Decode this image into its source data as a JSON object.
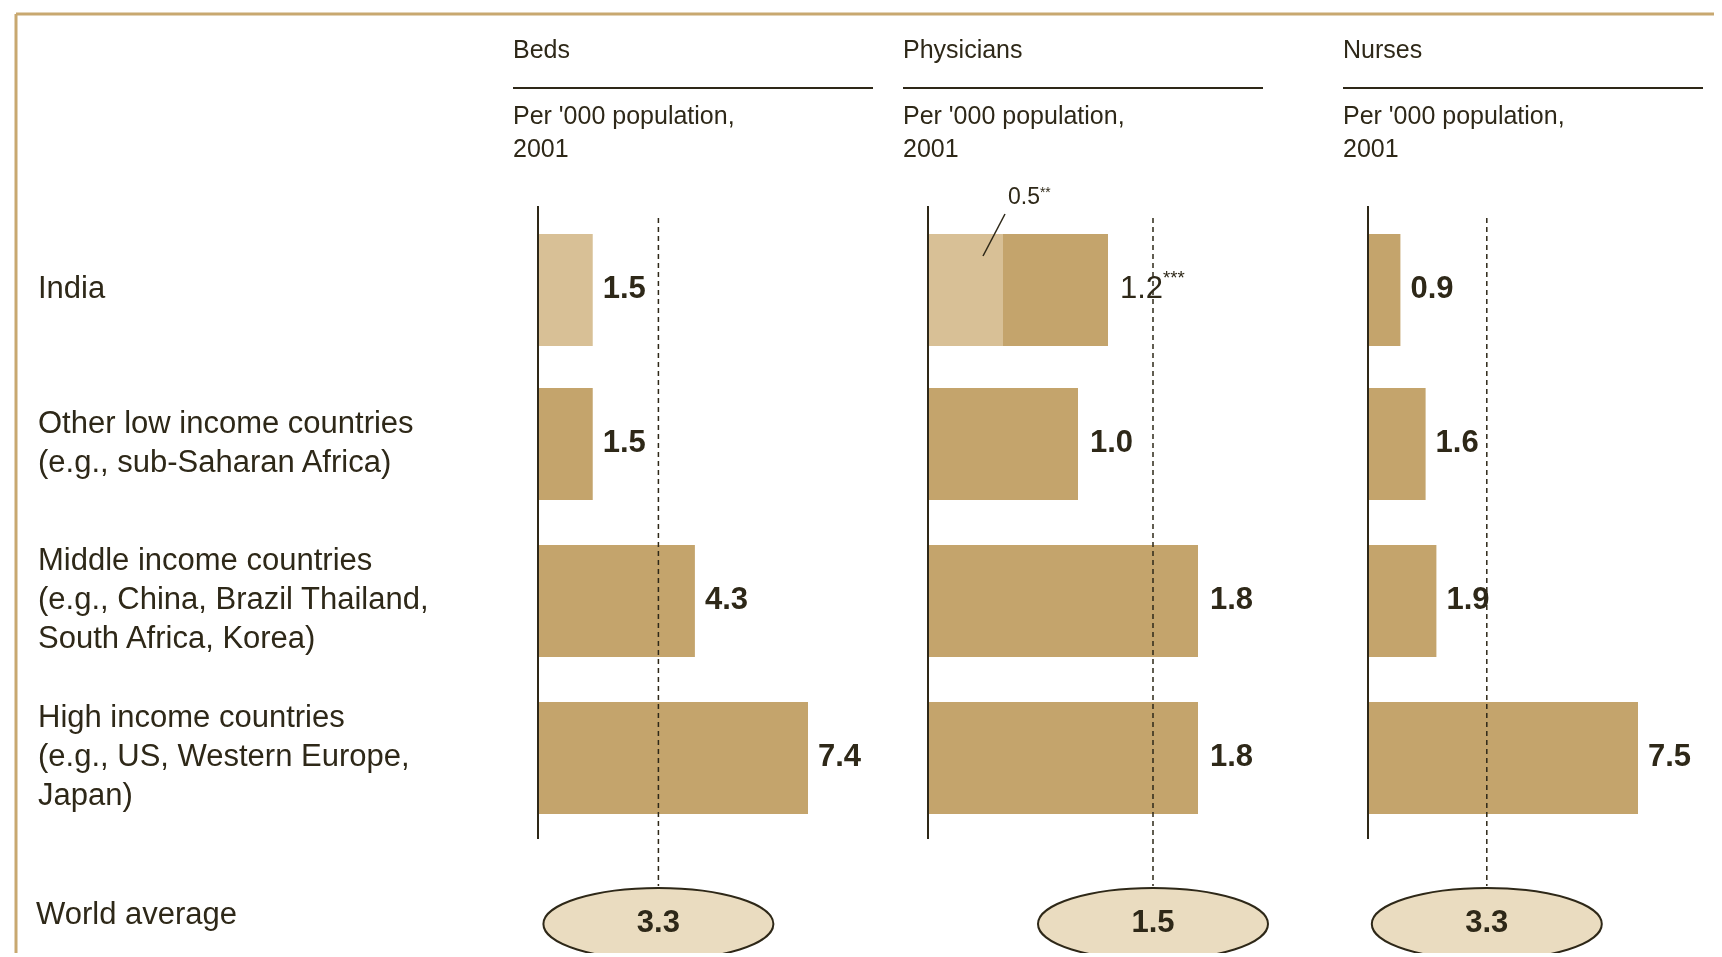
{
  "chart_data": [
    {
      "type": "bar",
      "orientation": "horizontal",
      "title": "Beds",
      "subtitle": "Per '000 population,\n2001",
      "categories": [
        "India",
        "Other low income countries\n(e.g., sub-Saharan Africa)",
        "Middle income countries\n(e.g., China, Brazil Thailand,\nSouth Africa, Korea)",
        "High income countries\n(e.g., US, Western Europe,\nJapan)"
      ],
      "values": [
        1.5,
        1.5,
        4.3,
        7.4
      ],
      "colors": [
        "#d8c096",
        "#c4a46c",
        "#c4a46c",
        "#c4a46c"
      ],
      "data_labels": true,
      "tick_labels": "y",
      "ref_lines": [
        {
          "axis": "x",
          "value": 3.3,
          "label": "3.3",
          "line_style": "dashed"
        }
      ],
      "annotations": [
        "World average"
      ]
    },
    {
      "type": "bar",
      "orientation": "horizontal",
      "title": "Physicians",
      "subtitle": "Per '000 population,\n2001",
      "categories": [
        null,
        null,
        null,
        null
      ],
      "stacked": true,
      "series": [
        {
          "color": "#d8c096",
          "values": [
            0.5,
            null,
            null,
            null
          ],
          "value_labels": [
            "0.5$^{**}$",
            null,
            null,
            null
          ]
        },
        {
          "color": "#c4a46c",
          "values": [
            0.7,
            1.0,
            1.8,
            1.8
          ]
        }
      ],
      "totals": [
        "1.2$^{***}$",
        "1.0",
        "1.8",
        "1.8"
      ],
      "tick_labels": false,
      "ref_lines": [
        {
          "axis": "x",
          "value": 1.5,
          "label": "1.5",
          "line_style": "dashed"
        }
      ]
    },
    {
      "type": "bar",
      "orientation": "horizontal",
      "title": "Nurses",
      "subtitle": "Per '000 population,\n2001",
      "categories": [
        null,
        null,
        null,
        null
      ],
      "values": [
        0.9,
        1.6,
        1.9,
        7.5
      ],
      "color": "#c4a46c",
      "data_labels": true,
      "tick_labels": false,
      "ref_lines": [
        {
          "axis": "x",
          "value": 3.3,
          "label": "3.3",
          "line_style": "dashed"
        }
      ]
    }
  ]
}
